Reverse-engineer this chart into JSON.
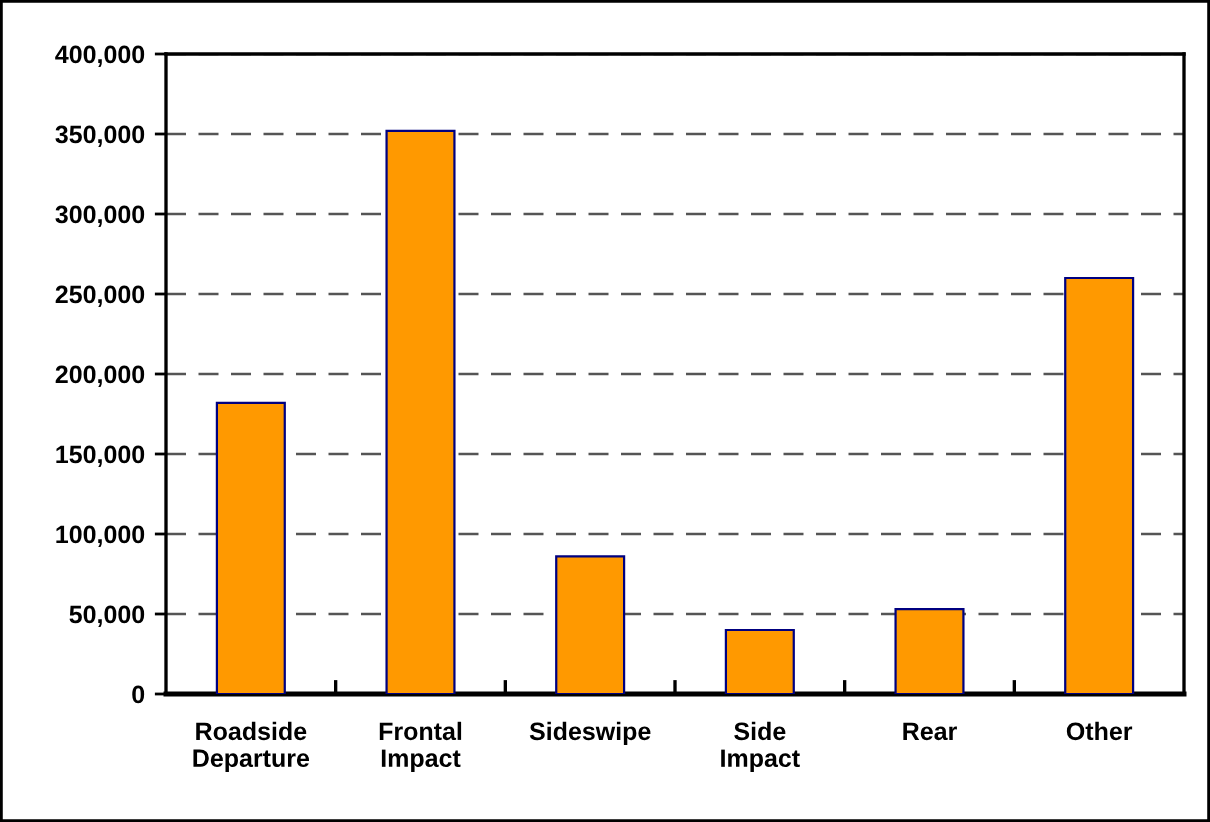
{
  "chart_data": {
    "type": "bar",
    "categories": [
      "Roadside\nDeparture",
      "Frontal\nImpact",
      "Sideswipe",
      "Side\nImpact",
      "Rear",
      "Other"
    ],
    "values": [
      182000,
      352000,
      86000,
      40000,
      53000,
      260000
    ],
    "color": "#ff9900",
    "ylim": [
      0,
      400000
    ],
    "yticks": [
      {
        "value": 0,
        "label": "0"
      },
      {
        "value": 50000,
        "label": "50,000"
      },
      {
        "value": 100000,
        "label": "100,000"
      },
      {
        "value": 150000,
        "label": "150,000"
      },
      {
        "value": 200000,
        "label": "200,000"
      },
      {
        "value": 250000,
        "label": "250,000"
      },
      {
        "value": 300000,
        "label": "300,000"
      },
      {
        "value": 350000,
        "label": "350,000"
      },
      {
        "value": 400000,
        "label": "400,000"
      }
    ],
    "grid": "y",
    "line_style": "dashed",
    "legend": false
  }
}
